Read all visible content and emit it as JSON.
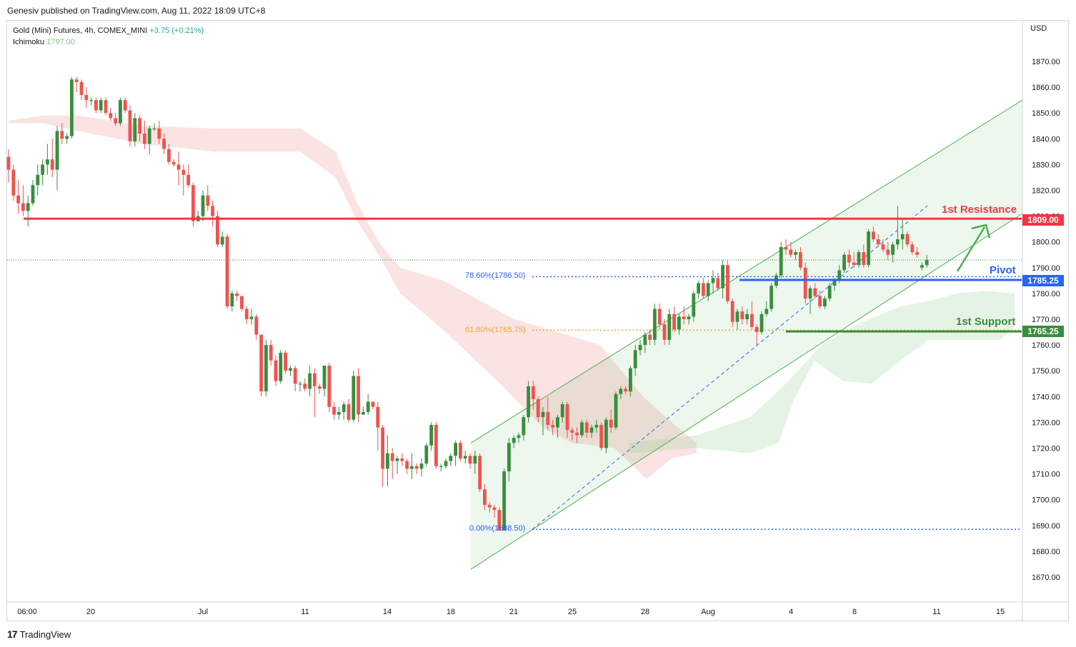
{
  "header": {
    "published": "Genesiv published on TradingView.com, Aug 11, 2022 18:09 UTC+8"
  },
  "legend": {
    "symbol": "Gold (Mini) Futures, 4h, COMEX_MINI",
    "change": "+3.75 (+0.21%)",
    "indicator": "Ichimoku",
    "indicator_value": "1797.00"
  },
  "footer": {
    "brand": "TradingView"
  },
  "colors": {
    "up": "#388e3c",
    "down": "#ef5350",
    "resistance": "#f23645",
    "pivot": "#2962ff",
    "support": "#388e3c",
    "channel": "#4caf50",
    "fib_786": "#2962ff",
    "fib_618": "#f5a623",
    "fib_0": "#2962ff"
  },
  "chart_data": {
    "type": "candlestick",
    "currency": "USD",
    "x_ticks": [
      "06:00",
      "20",
      "Jul",
      "11",
      "14",
      "18",
      "21",
      "25",
      "28",
      "Aug",
      "4",
      "8",
      "11",
      "15"
    ],
    "y_ticks": [
      1670,
      1680,
      1690,
      1700,
      1710,
      1720,
      1730,
      1740,
      1750,
      1760,
      1770,
      1780,
      1790,
      1800,
      1810,
      1820,
      1830,
      1840,
      1850,
      1860,
      1870
    ],
    "y_range": [
      1663,
      1885
    ],
    "levels": [
      {
        "name": "1st Resistance",
        "value": 1809.0,
        "tag": "1809.00"
      },
      {
        "name": "Pivot",
        "value": 1785.25,
        "tag": "1785.25"
      },
      {
        "name": "1st Support",
        "value": 1765.25,
        "tag": "1765.25"
      }
    ],
    "fib_levels": [
      {
        "label": "78.60%(1786.50)",
        "value": 1786.5
      },
      {
        "label": "61.80%(1765.75)",
        "value": 1765.75
      },
      {
        "label": "0.00%(1688.50)",
        "value": 1688.5
      }
    ],
    "last_price_line": 1793,
    "channel": {
      "lower_start": 1673,
      "lower_end": 1811,
      "upper_start": 1722,
      "upper_end": 1855
    },
    "candles": [
      [
        1833,
        1836,
        1823,
        1828
      ],
      [
        1828,
        1830,
        1816,
        1818
      ],
      [
        1818,
        1824,
        1811,
        1815
      ],
      [
        1815,
        1822,
        1810,
        1812
      ],
      [
        1812,
        1818,
        1806,
        1815
      ],
      [
        1815,
        1824,
        1814,
        1822
      ],
      [
        1822,
        1830,
        1818,
        1826
      ],
      [
        1826,
        1832,
        1822,
        1830
      ],
      [
        1830,
        1838,
        1826,
        1832
      ],
      [
        1832,
        1840,
        1825,
        1828
      ],
      [
        1828,
        1845,
        1820,
        1843
      ],
      [
        1843,
        1846,
        1838,
        1840
      ],
      [
        1840,
        1842,
        1838,
        1841
      ],
      [
        1841,
        1864,
        1840,
        1863
      ],
      [
        1863,
        1864,
        1858,
        1862
      ],
      [
        1862,
        1863,
        1855,
        1857
      ],
      [
        1857,
        1860,
        1852,
        1855
      ],
      [
        1855,
        1856,
        1853,
        1855
      ],
      [
        1855,
        1856,
        1850,
        1851
      ],
      [
        1851,
        1856,
        1850,
        1855
      ],
      [
        1855,
        1856,
        1849,
        1850
      ],
      [
        1850,
        1852,
        1847,
        1848
      ],
      [
        1848,
        1850,
        1845,
        1846
      ],
      [
        1846,
        1856,
        1845,
        1855
      ],
      [
        1855,
        1856,
        1850,
        1851
      ],
      [
        1851,
        1853,
        1837,
        1839
      ],
      [
        1839,
        1850,
        1837,
        1848
      ],
      [
        1848,
        1849,
        1839,
        1842
      ],
      [
        1842,
        1847,
        1836,
        1838
      ],
      [
        1838,
        1845,
        1834,
        1844
      ],
      [
        1844,
        1846,
        1843,
        1844
      ],
      [
        1844,
        1847,
        1838,
        1840
      ],
      [
        1840,
        1842,
        1834,
        1836
      ],
      [
        1836,
        1838,
        1830,
        1831
      ],
      [
        1831,
        1832,
        1829,
        1830
      ],
      [
        1830,
        1835,
        1822,
        1828
      ],
      [
        1828,
        1830,
        1818,
        1826
      ],
      [
        1826,
        1830,
        1821,
        1822
      ],
      [
        1822,
        1823,
        1806,
        1808
      ],
      [
        1808,
        1812,
        1808,
        1810
      ],
      [
        1810,
        1820,
        1808,
        1818
      ],
      [
        1818,
        1822,
        1812,
        1814
      ],
      [
        1814,
        1816,
        1806,
        1810
      ],
      [
        1810,
        1812,
        1798,
        1799
      ],
      [
        1799,
        1804,
        1798,
        1802
      ],
      [
        1802,
        1803,
        1774,
        1775
      ],
      [
        1775,
        1781,
        1773,
        1780
      ],
      [
        1780,
        1781,
        1777,
        1779
      ],
      [
        1779,
        1779,
        1773,
        1774
      ],
      [
        1774,
        1775,
        1768,
        1770
      ],
      [
        1770,
        1774,
        1768,
        1771
      ],
      [
        1771,
        1772,
        1762,
        1764
      ],
      [
        1764,
        1764,
        1740,
        1742
      ],
      [
        1742,
        1762,
        1740,
        1760
      ],
      [
        1760,
        1762,
        1752,
        1754
      ],
      [
        1754,
        1756,
        1744,
        1746
      ],
      [
        1746,
        1758,
        1745,
        1757
      ],
      [
        1757,
        1758,
        1749,
        1750
      ],
      [
        1750,
        1752,
        1748,
        1751
      ],
      [
        1751,
        1752,
        1742,
        1745
      ],
      [
        1745,
        1746,
        1742,
        1745
      ],
      [
        1745,
        1747,
        1742,
        1743
      ],
      [
        1743,
        1752,
        1740,
        1749
      ],
      [
        1749,
        1751,
        1732,
        1744
      ],
      [
        1744,
        1745,
        1741,
        1743
      ],
      [
        1743,
        1752,
        1740,
        1752
      ],
      [
        1752,
        1753,
        1734,
        1736
      ],
      [
        1736,
        1738,
        1731,
        1733
      ],
      [
        1733,
        1736,
        1731,
        1734
      ],
      [
        1734,
        1738,
        1731,
        1737
      ],
      [
        1737,
        1739,
        1730,
        1731
      ],
      [
        1731,
        1750,
        1730,
        1748
      ],
      [
        1748,
        1751,
        1730,
        1733
      ],
      [
        1733,
        1736,
        1733,
        1734
      ],
      [
        1734,
        1741,
        1733,
        1738
      ],
      [
        1738,
        1738,
        1735,
        1736
      ],
      [
        1736,
        1738,
        1719,
        1728
      ],
      [
        1728,
        1729,
        1705,
        1712
      ],
      [
        1712,
        1725,
        1705,
        1718
      ],
      [
        1718,
        1720,
        1708,
        1715
      ],
      [
        1715,
        1717,
        1710,
        1716
      ],
      [
        1716,
        1718,
        1713,
        1715
      ],
      [
        1715,
        1716,
        1710,
        1712
      ],
      [
        1712,
        1718,
        1708,
        1713
      ],
      [
        1713,
        1714,
        1710,
        1712
      ],
      [
        1712,
        1716,
        1709,
        1714
      ],
      [
        1714,
        1722,
        1713,
        1721
      ],
      [
        1721,
        1730,
        1719,
        1729
      ],
      [
        1729,
        1730,
        1712,
        1713
      ],
      [
        1713,
        1714,
        1711,
        1713
      ],
      [
        1713,
        1716,
        1712,
        1715
      ],
      [
        1715,
        1718,
        1713,
        1717
      ],
      [
        1717,
        1723,
        1713,
        1722
      ],
      [
        1722,
        1723,
        1715,
        1716
      ],
      [
        1716,
        1719,
        1714,
        1717
      ],
      [
        1717,
        1718,
        1712,
        1714
      ],
      [
        1714,
        1719,
        1710,
        1717
      ],
      [
        1717,
        1718,
        1703,
        1704
      ],
      [
        1704,
        1706,
        1696,
        1698
      ],
      [
        1698,
        1699,
        1695,
        1697
      ],
      [
        1697,
        1698,
        1693,
        1696
      ],
      [
        1696,
        1697,
        1688,
        1688
      ],
      [
        1688,
        1712,
        1688,
        1711
      ],
      [
        1711,
        1724,
        1707,
        1722
      ],
      [
        1722,
        1725,
        1720,
        1724
      ],
      [
        1724,
        1726,
        1722,
        1725
      ],
      [
        1725,
        1733,
        1723,
        1732
      ],
      [
        1732,
        1746,
        1730,
        1744
      ],
      [
        1744,
        1746,
        1735,
        1739
      ],
      [
        1739,
        1740,
        1730,
        1732
      ],
      [
        1732,
        1736,
        1725,
        1734
      ],
      [
        1734,
        1740,
        1727,
        1729
      ],
      [
        1729,
        1731,
        1725,
        1728
      ],
      [
        1728,
        1733,
        1724,
        1732
      ],
      [
        1732,
        1738,
        1730,
        1737
      ],
      [
        1737,
        1738,
        1724,
        1727
      ],
      [
        1727,
        1728,
        1723,
        1726
      ],
      [
        1726,
        1728,
        1722,
        1725
      ],
      [
        1725,
        1731,
        1724,
        1730
      ],
      [
        1730,
        1731,
        1724,
        1726
      ],
      [
        1726,
        1729,
        1724,
        1728
      ],
      [
        1728,
        1731,
        1726,
        1729
      ],
      [
        1729,
        1730,
        1719,
        1720
      ],
      [
        1720,
        1732,
        1718,
        1731
      ],
      [
        1731,
        1735,
        1726,
        1728
      ],
      [
        1728,
        1742,
        1727,
        1741
      ],
      [
        1741,
        1744,
        1739,
        1743
      ],
      [
        1743,
        1744,
        1741,
        1742
      ],
      [
        1742,
        1752,
        1740,
        1751
      ],
      [
        1751,
        1760,
        1748,
        1758
      ],
      [
        1758,
        1762,
        1756,
        1760
      ],
      [
        1760,
        1765,
        1757,
        1764
      ],
      [
        1764,
        1766,
        1760,
        1762
      ],
      [
        1762,
        1776,
        1760,
        1774
      ],
      [
        1774,
        1776,
        1766,
        1768
      ],
      [
        1768,
        1770,
        1760,
        1762
      ],
      [
        1762,
        1774,
        1760,
        1772
      ],
      [
        1772,
        1775,
        1765,
        1766
      ],
      [
        1766,
        1772,
        1764,
        1771
      ],
      [
        1771,
        1775,
        1768,
        1770
      ],
      [
        1770,
        1772,
        1768,
        1771
      ],
      [
        1771,
        1781,
        1769,
        1780
      ],
      [
        1780,
        1785,
        1778,
        1784
      ],
      [
        1784,
        1786,
        1778,
        1779
      ],
      [
        1779,
        1785,
        1777,
        1784
      ],
      [
        1784,
        1789,
        1780,
        1786
      ],
      [
        1786,
        1788,
        1781,
        1782
      ],
      [
        1782,
        1793,
        1778,
        1791
      ],
      [
        1791,
        1793,
        1776,
        1777
      ],
      [
        1777,
        1778,
        1767,
        1769
      ],
      [
        1769,
        1774,
        1766,
        1773
      ],
      [
        1773,
        1775,
        1768,
        1770
      ],
      [
        1770,
        1774,
        1768,
        1772
      ],
      [
        1772,
        1777,
        1766,
        1767
      ],
      [
        1767,
        1768,
        1760,
        1765
      ],
      [
        1765,
        1773,
        1764,
        1772
      ],
      [
        1772,
        1777,
        1771,
        1774
      ],
      [
        1774,
        1784,
        1773,
        1783
      ],
      [
        1783,
        1788,
        1782,
        1787
      ],
      [
        1787,
        1800,
        1786,
        1798
      ],
      [
        1798,
        1801,
        1795,
        1797
      ],
      [
        1797,
        1800,
        1794,
        1795
      ],
      [
        1795,
        1797,
        1793,
        1796
      ],
      [
        1796,
        1798,
        1789,
        1790
      ],
      [
        1790,
        1792,
        1776,
        1778
      ],
      [
        1778,
        1783,
        1772,
        1782
      ],
      [
        1782,
        1784,
        1778,
        1779
      ],
      [
        1779,
        1781,
        1774,
        1775
      ],
      [
        1775,
        1779,
        1774,
        1778
      ],
      [
        1778,
        1784,
        1777,
        1783
      ],
      [
        1783,
        1786,
        1781,
        1785
      ],
      [
        1785,
        1791,
        1784,
        1789
      ],
      [
        1789,
        1796,
        1788,
        1795
      ],
      [
        1795,
        1797,
        1790,
        1792
      ],
      [
        1792,
        1796,
        1790,
        1791
      ],
      [
        1791,
        1797,
        1790,
        1796
      ],
      [
        1796,
        1799,
        1790,
        1791
      ],
      [
        1791,
        1805,
        1790,
        1804
      ],
      [
        1804,
        1806,
        1800,
        1801
      ],
      [
        1801,
        1803,
        1798,
        1799
      ],
      [
        1799,
        1801,
        1796,
        1797
      ],
      [
        1797,
        1800,
        1793,
        1795
      ],
      [
        1795,
        1800,
        1792,
        1799
      ],
      [
        1799,
        1814,
        1797,
        1801
      ],
      [
        1801,
        1809,
        1797,
        1803
      ],
      [
        1803,
        1804,
        1798,
        1799
      ],
      [
        1799,
        1800,
        1795,
        1796
      ],
      [
        1796,
        1798,
        1794,
        1795
      ],
      [
        1790,
        1792,
        1789,
        1791
      ],
      [
        1791,
        1795,
        1790,
        1793
      ]
    ]
  }
}
